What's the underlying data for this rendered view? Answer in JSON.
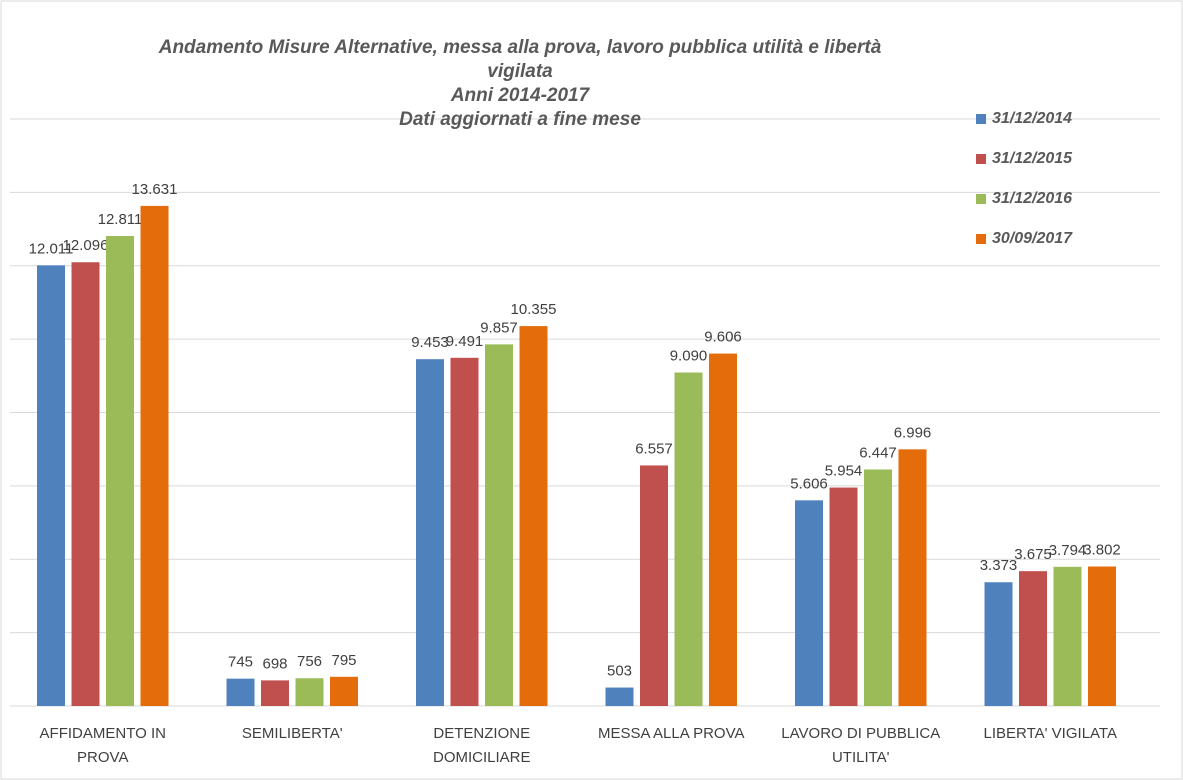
{
  "chart_data": {
    "type": "bar",
    "title": "Andamento Misure Alternative, messa alla prova, lavoro pubblica utilità e libertà vigilata",
    "subtitle": [
      "Anni 2014-2017",
      "Dati aggiornati a fine mese"
    ],
    "categories": [
      "AFFIDAMENTO IN PROVA",
      "SEMILIBERTA'",
      "DETENZIONE DOMICILIARE",
      "MESSA ALLA PROVA",
      "LAVORO DI PUBBLICA UTILITA'",
      "LIBERTA' VIGILATA"
    ],
    "series": [
      {
        "name": "31/12/2014",
        "color": "#4f81bd",
        "values": [
          12011,
          745,
          9453,
          503,
          5606,
          3373
        ],
        "value_labels": [
          "12.011",
          "745",
          "9.453",
          "503",
          "5.606",
          "3.373"
        ]
      },
      {
        "name": "31/12/2015",
        "color": "#c0504d",
        "values": [
          12096,
          698,
          9491,
          6557,
          5954,
          3675
        ],
        "value_labels": [
          "12.096",
          "698",
          "9.491",
          "6.557",
          "5.954",
          "3.675"
        ]
      },
      {
        "name": "31/12/2016",
        "color": "#9bbb59",
        "values": [
          12811,
          756,
          9857,
          9090,
          6447,
          3794
        ],
        "value_labels": [
          "12.811",
          "756",
          "9.857",
          "9.090",
          "6.447",
          "3.794"
        ]
      },
      {
        "name": "30/09/2017",
        "color": "#e46c0a",
        "values": [
          13631,
          795,
          10355,
          9606,
          6996,
          3802
        ],
        "value_labels": [
          "13.631",
          "795",
          "10.355",
          "9.606",
          "6.996",
          "3.802"
        ]
      }
    ],
    "ylim": [
      0,
      16000
    ],
    "yticks": [
      0,
      2000,
      4000,
      6000,
      8000,
      10000,
      12000,
      14000,
      16000
    ],
    "grid": true,
    "legend": "top-right"
  }
}
